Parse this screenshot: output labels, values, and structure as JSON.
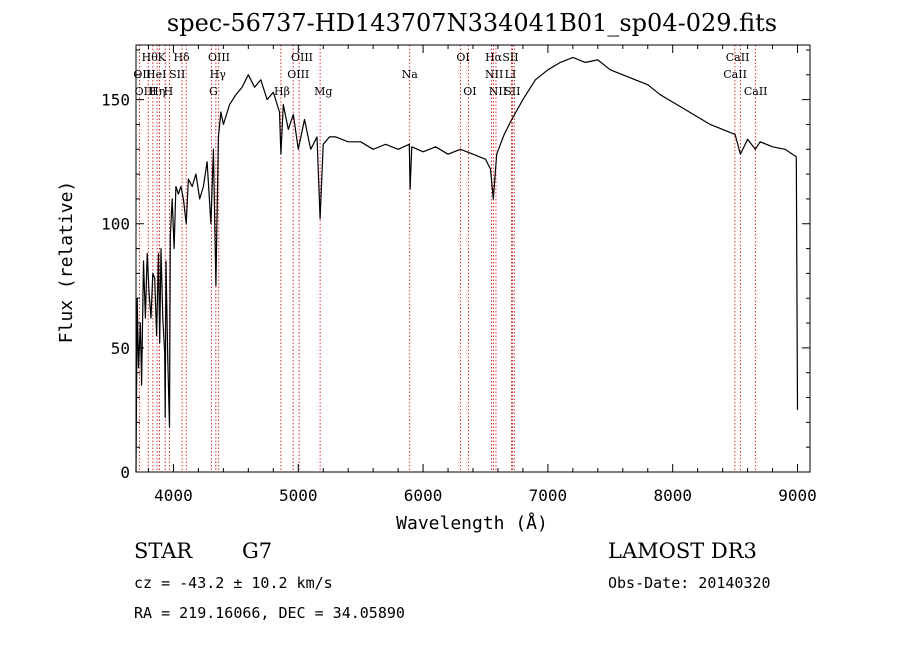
{
  "chart_data": {
    "type": "line",
    "title": "spec-56737-HD143707N334041B01_sp04-029.fits",
    "xlabel": "Wavelength (Å)",
    "ylabel": "Flux (relative)",
    "xlim": [
      3700,
      9100
    ],
    "ylim": [
      0,
      172
    ],
    "x_ticks": [
      4000,
      5000,
      6000,
      7000,
      8000,
      9000
    ],
    "y_ticks": [
      0,
      50,
      100,
      150
    ],
    "grid": false,
    "series": [
      {
        "name": "spectrum",
        "x": [
          3700,
          3710,
          3720,
          3735,
          3745,
          3760,
          3775,
          3790,
          3805,
          3820,
          3835,
          3850,
          3865,
          3880,
          3890,
          3900,
          3915,
          3930,
          3934,
          3940,
          3955,
          3968,
          3975,
          3990,
          4005,
          4020,
          4040,
          4060,
          4080,
          4102,
          4120,
          4150,
          4180,
          4210,
          4240,
          4270,
          4300,
          4320,
          4340,
          4360,
          4380,
          4400,
          4450,
          4500,
          4550,
          4600,
          4650,
          4700,
          4750,
          4800,
          4850,
          4861,
          4880,
          4920,
          4960,
          5000,
          5050,
          5100,
          5150,
          5175,
          5200,
          5250,
          5300,
          5400,
          5500,
          5600,
          5700,
          5800,
          5890,
          5896,
          5910,
          6000,
          6100,
          6200,
          6300,
          6400,
          6500,
          6540,
          6563,
          6590,
          6650,
          6700,
          6800,
          6900,
          7000,
          7100,
          7200,
          7300,
          7400,
          7500,
          7600,
          7700,
          7800,
          7900,
          8000,
          8100,
          8200,
          8300,
          8400,
          8500,
          8542,
          8600,
          8662,
          8700,
          8800,
          8900,
          8990,
          9000
        ],
        "y": [
          0,
          70,
          42,
          60,
          35,
          85,
          62,
          88,
          72,
          62,
          80,
          78,
          55,
          88,
          52,
          90,
          62,
          48,
          22,
          85,
          45,
          18,
          95,
          110,
          90,
          115,
          112,
          115,
          110,
          100,
          118,
          115,
          120,
          110,
          115,
          125,
          100,
          130,
          75,
          135,
          145,
          140,
          148,
          152,
          155,
          160,
          155,
          158,
          150,
          153,
          145,
          128,
          148,
          138,
          144,
          130,
          142,
          130,
          135,
          102,
          132,
          135,
          135,
          133,
          133,
          130,
          132,
          130,
          132,
          114,
          131,
          129,
          131,
          128,
          130,
          128,
          126,
          122,
          110,
          128,
          136,
          141,
          150,
          158,
          162,
          165,
          167,
          165,
          166,
          162,
          160,
          158,
          156,
          152,
          149,
          146,
          143,
          140,
          138,
          136,
          128,
          134,
          130,
          133,
          131,
          130,
          127,
          25
        ]
      }
    ],
    "line_markers": [
      {
        "name": "Hθ",
        "wavelength": 3798,
        "row": 0,
        "label_wavelength": 3810
      },
      {
        "name": "OII",
        "wavelength": 3727,
        "row": 1,
        "label_wavelength": 3750
      },
      {
        "name": "OIII",
        "wavelength": 3869,
        "row": 2,
        "label_wavelength": 3777
      },
      {
        "name": "HeI",
        "wavelength": 3889,
        "row": 1,
        "label_wavelength": 3862
      },
      {
        "name": "Hη",
        "wavelength": 3835,
        "row": 2,
        "label_wavelength": 3870
      },
      {
        "name": "K",
        "wavelength": 3934,
        "row": 0,
        "label_wavelength": 3905
      },
      {
        "name": "SII",
        "wavelength": 4069,
        "row": 1,
        "label_wavelength": 4030
      },
      {
        "name": "H",
        "wavelength": 3968,
        "row": 2,
        "label_wavelength": 3960
      },
      {
        "name": "Hδ",
        "wavelength": 4102,
        "row": 0,
        "label_wavelength": 4065
      },
      {
        "name": "OIII",
        "wavelength": 4363,
        "row": 0,
        "label_wavelength": 4365
      },
      {
        "name": "Hγ",
        "wavelength": 4340,
        "row": 1,
        "label_wavelength": 4355
      },
      {
        "name": "G",
        "wavelength": 4305,
        "row": 2,
        "label_wavelength": 4320
      },
      {
        "name": "Hβ",
        "wavelength": 4861,
        "row": 2,
        "label_wavelength": 4870
      },
      {
        "name": "OIII",
        "wavelength": 5007,
        "row": 0,
        "label_wavelength": 5030
      },
      {
        "name": "OIII",
        "wavelength": 4959,
        "row": 1,
        "label_wavelength": 5000
      },
      {
        "name": "Mg",
        "wavelength": 5175,
        "row": 2,
        "label_wavelength": 5200
      },
      {
        "name": "Na",
        "wavelength": 5893,
        "row": 1,
        "label_wavelength": 5893
      },
      {
        "name": "OI",
        "wavelength": 6300,
        "row": 0,
        "label_wavelength": 6320
      },
      {
        "name": "OI",
        "wavelength": 6364,
        "row": 2,
        "label_wavelength": 6375
      },
      {
        "name": "Hα",
        "wavelength": 6563,
        "row": 0,
        "label_wavelength": 6565
      },
      {
        "name": "NII",
        "wavelength": 6548,
        "row": 1,
        "label_wavelength": 6570
      },
      {
        "name": "SII",
        "wavelength": 6717,
        "row": 0,
        "label_wavelength": 6700
      },
      {
        "name": "NII",
        "wavelength": 6584,
        "row": 2,
        "label_wavelength": 6600
      },
      {
        "name": "LI",
        "wavelength": 6708,
        "row": 1,
        "label_wavelength": 6700
      },
      {
        "name": "SII",
        "wavelength": 6731,
        "row": 2,
        "label_wavelength": 6715
      },
      {
        "name": "CaII",
        "wavelength": 8498,
        "row": 0,
        "label_wavelength": 8520
      },
      {
        "name": "CaII",
        "wavelength": 8542,
        "row": 1,
        "label_wavelength": 8500
      },
      {
        "name": "CaII",
        "wavelength": 8662,
        "row": 2,
        "label_wavelength": 8665
      }
    ]
  },
  "info": {
    "object_class": "STAR",
    "subclass": "G7",
    "survey": "LAMOST DR3",
    "redshift_text": "cz = -43.2 ± 10.2 km/s",
    "obs_date": "Obs-Date: 20140320",
    "coords": "RA = 219.16066, DEC =  34.05890"
  },
  "colors": {
    "spectrum": "#000000",
    "marker_line": "#cc0000",
    "axis": "#000000",
    "background": "#ffffff"
  }
}
